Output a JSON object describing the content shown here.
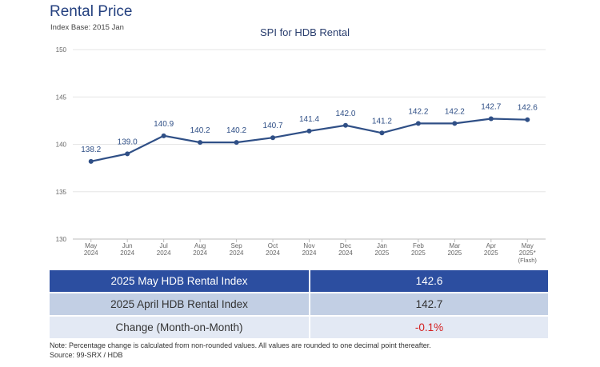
{
  "header": {
    "title": "Rental Price",
    "subtitle": "Index Base: 2015 Jan"
  },
  "chart_data": {
    "type": "line",
    "title": "SPI for HDB Rental",
    "xlabel": "",
    "ylabel": "",
    "ylim": [
      130,
      150
    ],
    "yticks": [
      "130",
      "135",
      "140",
      "145",
      "150"
    ],
    "grid": true,
    "categories": [
      [
        "May",
        "2024"
      ],
      [
        "Jun",
        "2024"
      ],
      [
        "Jul",
        "2024"
      ],
      [
        "Aug",
        "2024"
      ],
      [
        "Sep",
        "2024"
      ],
      [
        "Oct",
        "2024"
      ],
      [
        "Nov",
        "2024"
      ],
      [
        "Dec",
        "2024"
      ],
      [
        "Jan",
        "2025"
      ],
      [
        "Feb",
        "2025"
      ],
      [
        "Mar",
        "2025"
      ],
      [
        "Apr",
        "2025"
      ],
      [
        "May",
        "2025*",
        "(Flash)"
      ]
    ],
    "values": [
      138.2,
      139.0,
      140.9,
      140.2,
      140.2,
      140.7,
      141.4,
      142.0,
      141.2,
      142.2,
      142.2,
      142.7,
      142.6
    ],
    "data_labels": [
      "138.2",
      "139.0",
      "140.9",
      "140.2",
      "140.2",
      "140.7",
      "141.4",
      "142.0",
      "141.2",
      "142.2",
      "142.2",
      "142.7",
      "142.6"
    ],
    "colors": {
      "line": "#2f4f86",
      "grid": "#e6e6e6"
    }
  },
  "table": {
    "rows": [
      {
        "label": "2025 May HDB Rental Index",
        "value": "142.6"
      },
      {
        "label": "2025 April HDB Rental Index",
        "value": "142.7"
      },
      {
        "label": "Change (Month-on-Month)",
        "value": "-0.1%"
      }
    ]
  },
  "footer": {
    "note": "Note: Percentage change is calculated from non-rounded values.  All values are rounded to one decimal point thereafter.",
    "source": "Source: 99-SRX / HDB"
  }
}
